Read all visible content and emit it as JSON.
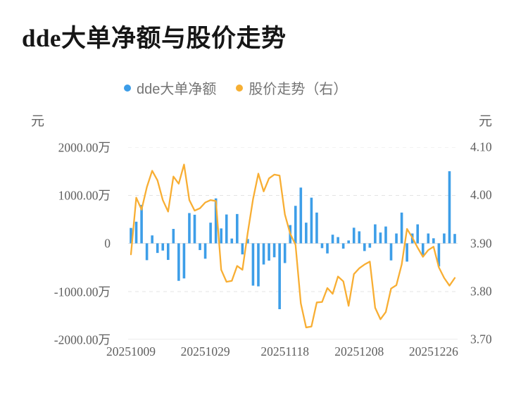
{
  "header": {
    "title": "dde大单净额与股价走势"
  },
  "legend": {
    "items": [
      {
        "label": "dde大单净额",
        "color": "#3c9de8"
      },
      {
        "label": "股价走势（右）",
        "color": "#f6af33"
      }
    ]
  },
  "left_axis": {
    "unit": "元",
    "tick_labels": [
      "2000.00万",
      "1000.00万",
      "0",
      "-1000.00万",
      "-2000.00万"
    ]
  },
  "right_axis": {
    "unit": "元",
    "tick_labels": [
      "4.10",
      "4.00",
      "3.90",
      "3.80",
      "3.70"
    ]
  },
  "x_axis": {
    "tick_labels": [
      {
        "label": "20251009",
        "index": 0
      },
      {
        "label": "20251029",
        "index": 14
      },
      {
        "label": "20251118",
        "index": 29
      },
      {
        "label": "20251208",
        "index": 43
      },
      {
        "label": "20251226",
        "index": 57
      }
    ]
  },
  "chart_data": {
    "type": "combo",
    "title": "dde大单净额与股价走势",
    "grid": {
      "horizontal_gridlines": true,
      "style": "dashed",
      "color": "#e4e4e4"
    },
    "legend_position": "top",
    "n_points": 62,
    "x_tick_labels_shown": [
      "20251009",
      "20251029",
      "20251118",
      "20251208",
      "20251226"
    ],
    "x_tick_indices": [
      0,
      14,
      29,
      43,
      57
    ],
    "left_axis": {
      "unit": "元",
      "min_wan": -2000,
      "max_wan": 2000,
      "ticks_wan": [
        2000,
        1000,
        0,
        -1000,
        -2000
      ]
    },
    "right_axis": {
      "unit": "元",
      "min": 3.7,
      "max": 4.1,
      "ticks": [
        4.1,
        4.0,
        3.9,
        3.8,
        3.7
      ]
    },
    "series": [
      {
        "name": "dde大单净额",
        "type": "bar",
        "axis": "left",
        "unit": "万元",
        "color": "#3d9ee8",
        "values": [
          320,
          450,
          800,
          -350,
          165,
          -200,
          -150,
          -345,
          300,
          -780,
          -730,
          630,
          595,
          -140,
          -320,
          430,
          935,
          310,
          600,
          100,
          610,
          -230,
          90,
          -880,
          -895,
          -440,
          -360,
          -290,
          -1370,
          -410,
          380,
          780,
          1160,
          430,
          950,
          640,
          -100,
          -210,
          180,
          130,
          -110,
          60,
          325,
          250,
          -160,
          -90,
          395,
          225,
          350,
          -355,
          205,
          640,
          -380,
          205,
          395,
          -255,
          205,
          105,
          -480,
          205,
          1500,
          195
        ]
      },
      {
        "name": "股价走势（右）",
        "type": "line",
        "axis": "right",
        "unit": "元",
        "color": "#f8ae33",
        "values": [
          3.877,
          3.995,
          3.97,
          4.017,
          4.051,
          4.031,
          3.99,
          3.966,
          4.039,
          4.024,
          4.064,
          3.99,
          3.968,
          3.973,
          3.985,
          3.99,
          3.988,
          3.845,
          3.82,
          3.822,
          3.853,
          3.845,
          3.922,
          3.992,
          4.045,
          4.008,
          4.035,
          4.043,
          4.041,
          3.96,
          3.92,
          3.897,
          3.775,
          3.725,
          3.727,
          3.777,
          3.778,
          3.807,
          3.795,
          3.831,
          3.821,
          3.77,
          3.836,
          3.848,
          3.856,
          3.862,
          3.766,
          3.742,
          3.757,
          3.806,
          3.813,
          3.856,
          3.93,
          3.912,
          3.891,
          3.872,
          3.886,
          3.893,
          3.85,
          3.828,
          3.812,
          3.828
        ]
      }
    ]
  },
  "layout_colors": {
    "gridline_dashed": "#e4e4e4",
    "zero_line": "#e1e1e1",
    "bottom_axis_line": "#d9d9d9"
  }
}
